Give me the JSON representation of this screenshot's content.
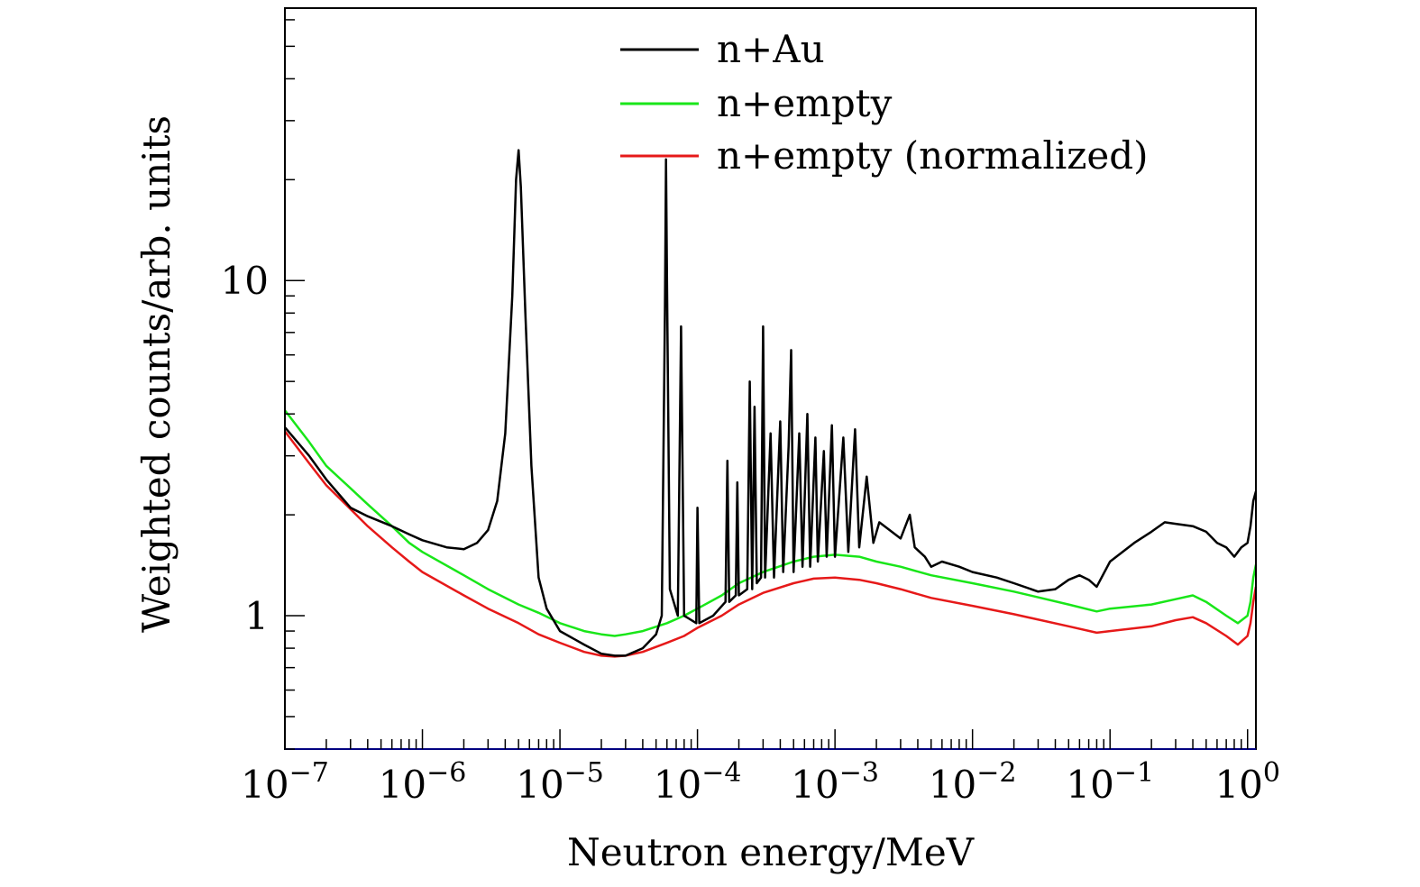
{
  "chart_data": {
    "type": "line",
    "title": "",
    "xlabel": "Neutron energy/MeV",
    "ylabel": "Weighted counts/arb. units",
    "xscale": "log",
    "yscale": "log",
    "xlim": [
      1e-07,
      1.15
    ],
    "ylim": [
      0.4,
      65
    ],
    "legend_position": "top-right",
    "x_tick_labels": [
      {
        "value": 1e-07,
        "base": "10",
        "exp": "−7"
      },
      {
        "value": 1e-06,
        "base": "10",
        "exp": "−6"
      },
      {
        "value": 1e-05,
        "base": "10",
        "exp": "−5"
      },
      {
        "value": 0.0001,
        "base": "10",
        "exp": "−4"
      },
      {
        "value": 0.001,
        "base": "10",
        "exp": "−3"
      },
      {
        "value": 0.01,
        "base": "10",
        "exp": "−2"
      },
      {
        "value": 0.1,
        "base": "10",
        "exp": "−1"
      },
      {
        "value": 1,
        "base": "10",
        "exp": "0"
      }
    ],
    "y_tick_labels": [
      {
        "value": 1,
        "label": "1"
      },
      {
        "value": 10,
        "label": "10"
      }
    ],
    "series": [
      {
        "name": "n+Au",
        "color": "#000000",
        "points": [
          [
            1e-07,
            3.65
          ],
          [
            1.5e-07,
            3.0
          ],
          [
            2e-07,
            2.55
          ],
          [
            3e-07,
            2.1
          ],
          [
            4e-07,
            1.98
          ],
          [
            6e-07,
            1.85
          ],
          [
            8e-07,
            1.75
          ],
          [
            1e-06,
            1.68
          ],
          [
            1.5e-06,
            1.6
          ],
          [
            2e-06,
            1.58
          ],
          [
            2.5e-06,
            1.65
          ],
          [
            3e-06,
            1.8
          ],
          [
            3.5e-06,
            2.2
          ],
          [
            4e-06,
            3.5
          ],
          [
            4.5e-06,
            9.0
          ],
          [
            4.8e-06,
            20.0
          ],
          [
            5e-06,
            24.5
          ],
          [
            5.2e-06,
            19.0
          ],
          [
            5.6e-06,
            8.0
          ],
          [
            6.2e-06,
            2.8
          ],
          [
            7e-06,
            1.3
          ],
          [
            8e-06,
            1.05
          ],
          [
            1e-05,
            0.9
          ],
          [
            1.5e-05,
            0.82
          ],
          [
            2e-05,
            0.77
          ],
          [
            2.5e-05,
            0.76
          ],
          [
            3e-05,
            0.76
          ],
          [
            4e-05,
            0.8
          ],
          [
            5e-05,
            0.88
          ],
          [
            5.5e-05,
            1.0
          ],
          [
            5.8e-05,
            8.0
          ],
          [
            5.9e-05,
            23.0
          ],
          [
            6e-05,
            10.0
          ],
          [
            6.3e-05,
            1.2
          ],
          [
            7.2e-05,
            1.0
          ],
          [
            7.6e-05,
            7.3
          ],
          [
            8e-05,
            1.0
          ],
          [
            9.8e-05,
            0.95
          ],
          [
            0.0001,
            2.1
          ],
          [
            0.000103,
            0.95
          ],
          [
            0.00013,
            1.0
          ],
          [
            0.00016,
            1.1
          ],
          [
            0.000165,
            2.9
          ],
          [
            0.00017,
            1.1
          ],
          [
            0.00019,
            1.15
          ],
          [
            0.000195,
            2.5
          ],
          [
            0.0002,
            1.15
          ],
          [
            0.00023,
            1.2
          ],
          [
            0.00024,
            5.0
          ],
          [
            0.00025,
            1.2
          ],
          [
            0.00026,
            4.2
          ],
          [
            0.00027,
            1.25
          ],
          [
            0.00029,
            1.3
          ],
          [
            0.0003,
            7.3
          ],
          [
            0.00031,
            1.3
          ],
          [
            0.00034,
            3.5
          ],
          [
            0.00036,
            1.3
          ],
          [
            0.0004,
            3.8
          ],
          [
            0.00042,
            1.35
          ],
          [
            0.00046,
            3.2
          ],
          [
            0.00048,
            6.2
          ],
          [
            0.0005,
            1.35
          ],
          [
            0.00055,
            3.5
          ],
          [
            0.00058,
            1.4
          ],
          [
            0.00063,
            4.0
          ],
          [
            0.00066,
            1.4
          ],
          [
            0.00072,
            3.4
          ],
          [
            0.00075,
            1.45
          ],
          [
            0.00083,
            3.1
          ],
          [
            0.00087,
            1.5
          ],
          [
            0.00095,
            3.7
          ],
          [
            0.001,
            1.5
          ],
          [
            0.00115,
            3.4
          ],
          [
            0.00125,
            1.55
          ],
          [
            0.0014,
            3.6
          ],
          [
            0.0015,
            1.6
          ],
          [
            0.0017,
            2.6
          ],
          [
            0.0019,
            1.65
          ],
          [
            0.0021,
            1.9
          ],
          [
            0.0025,
            1.8
          ],
          [
            0.003,
            1.7
          ],
          [
            0.0035,
            2.0
          ],
          [
            0.0038,
            1.6
          ],
          [
            0.0045,
            1.5
          ],
          [
            0.005,
            1.4
          ],
          [
            0.006,
            1.45
          ],
          [
            0.008,
            1.4
          ],
          [
            0.01,
            1.35
          ],
          [
            0.015,
            1.3
          ],
          [
            0.02,
            1.25
          ],
          [
            0.03,
            1.18
          ],
          [
            0.04,
            1.2
          ],
          [
            0.05,
            1.28
          ],
          [
            0.06,
            1.32
          ],
          [
            0.07,
            1.28
          ],
          [
            0.08,
            1.22
          ],
          [
            0.1,
            1.45
          ],
          [
            0.15,
            1.65
          ],
          [
            0.2,
            1.78
          ],
          [
            0.25,
            1.9
          ],
          [
            0.3,
            1.88
          ],
          [
            0.4,
            1.85
          ],
          [
            0.5,
            1.78
          ],
          [
            0.6,
            1.65
          ],
          [
            0.7,
            1.6
          ],
          [
            0.8,
            1.5
          ],
          [
            0.9,
            1.6
          ],
          [
            1.0,
            1.65
          ],
          [
            1.05,
            1.85
          ],
          [
            1.1,
            2.2
          ],
          [
            1.15,
            2.35
          ]
        ]
      },
      {
        "name": "n+empty",
        "color": "#19e619",
        "points": [
          [
            1e-07,
            4.1
          ],
          [
            1.5e-07,
            3.3
          ],
          [
            2e-07,
            2.8
          ],
          [
            3e-07,
            2.4
          ],
          [
            4e-07,
            2.15
          ],
          [
            6e-07,
            1.85
          ],
          [
            8e-07,
            1.65
          ],
          [
            1e-06,
            1.55
          ],
          [
            2e-06,
            1.32
          ],
          [
            3e-06,
            1.2
          ],
          [
            5e-06,
            1.08
          ],
          [
            7e-06,
            1.02
          ],
          [
            1e-05,
            0.95
          ],
          [
            1.5e-05,
            0.9
          ],
          [
            2e-05,
            0.88
          ],
          [
            2.5e-05,
            0.87
          ],
          [
            3e-05,
            0.88
          ],
          [
            4e-05,
            0.9
          ],
          [
            6e-05,
            0.95
          ],
          [
            8e-05,
            1.0
          ],
          [
            0.0001,
            1.05
          ],
          [
            0.00015,
            1.15
          ],
          [
            0.0002,
            1.25
          ],
          [
            0.0003,
            1.35
          ],
          [
            0.0005,
            1.45
          ],
          [
            0.0007,
            1.5
          ],
          [
            0.001,
            1.52
          ],
          [
            0.0015,
            1.5
          ],
          [
            0.002,
            1.45
          ],
          [
            0.003,
            1.4
          ],
          [
            0.005,
            1.32
          ],
          [
            0.01,
            1.25
          ],
          [
            0.02,
            1.18
          ],
          [
            0.05,
            1.08
          ],
          [
            0.08,
            1.03
          ],
          [
            0.1,
            1.05
          ],
          [
            0.2,
            1.08
          ],
          [
            0.3,
            1.12
          ],
          [
            0.4,
            1.15
          ],
          [
            0.5,
            1.1
          ],
          [
            0.7,
            1.0
          ],
          [
            0.85,
            0.95
          ],
          [
            1.0,
            1.0
          ],
          [
            1.05,
            1.1
          ],
          [
            1.1,
            1.3
          ],
          [
            1.15,
            1.42
          ]
        ]
      },
      {
        "name": "n+empty (normalized)",
        "color": "#e61919",
        "points": [
          [
            1e-07,
            3.55
          ],
          [
            1.5e-07,
            2.85
          ],
          [
            2e-07,
            2.45
          ],
          [
            3e-07,
            2.08
          ],
          [
            4e-07,
            1.85
          ],
          [
            6e-07,
            1.6
          ],
          [
            8e-07,
            1.45
          ],
          [
            1e-06,
            1.35
          ],
          [
            2e-06,
            1.15
          ],
          [
            3e-06,
            1.05
          ],
          [
            5e-06,
            0.95
          ],
          [
            7e-06,
            0.88
          ],
          [
            1e-05,
            0.83
          ],
          [
            1.5e-05,
            0.78
          ],
          [
            2e-05,
            0.76
          ],
          [
            2.5e-05,
            0.755
          ],
          [
            3e-05,
            0.76
          ],
          [
            4e-05,
            0.78
          ],
          [
            6e-05,
            0.83
          ],
          [
            8e-05,
            0.87
          ],
          [
            0.0001,
            0.92
          ],
          [
            0.00015,
            1.0
          ],
          [
            0.0002,
            1.08
          ],
          [
            0.0003,
            1.17
          ],
          [
            0.0005,
            1.25
          ],
          [
            0.0007,
            1.29
          ],
          [
            0.001,
            1.3
          ],
          [
            0.0015,
            1.28
          ],
          [
            0.002,
            1.25
          ],
          [
            0.003,
            1.2
          ],
          [
            0.005,
            1.13
          ],
          [
            0.01,
            1.07
          ],
          [
            0.02,
            1.01
          ],
          [
            0.05,
            0.93
          ],
          [
            0.08,
            0.89
          ],
          [
            0.1,
            0.9
          ],
          [
            0.2,
            0.93
          ],
          [
            0.3,
            0.97
          ],
          [
            0.4,
            0.99
          ],
          [
            0.5,
            0.95
          ],
          [
            0.7,
            0.87
          ],
          [
            0.85,
            0.82
          ],
          [
            1.0,
            0.87
          ],
          [
            1.05,
            0.95
          ],
          [
            1.1,
            1.1
          ],
          [
            1.15,
            1.22
          ]
        ]
      }
    ]
  }
}
